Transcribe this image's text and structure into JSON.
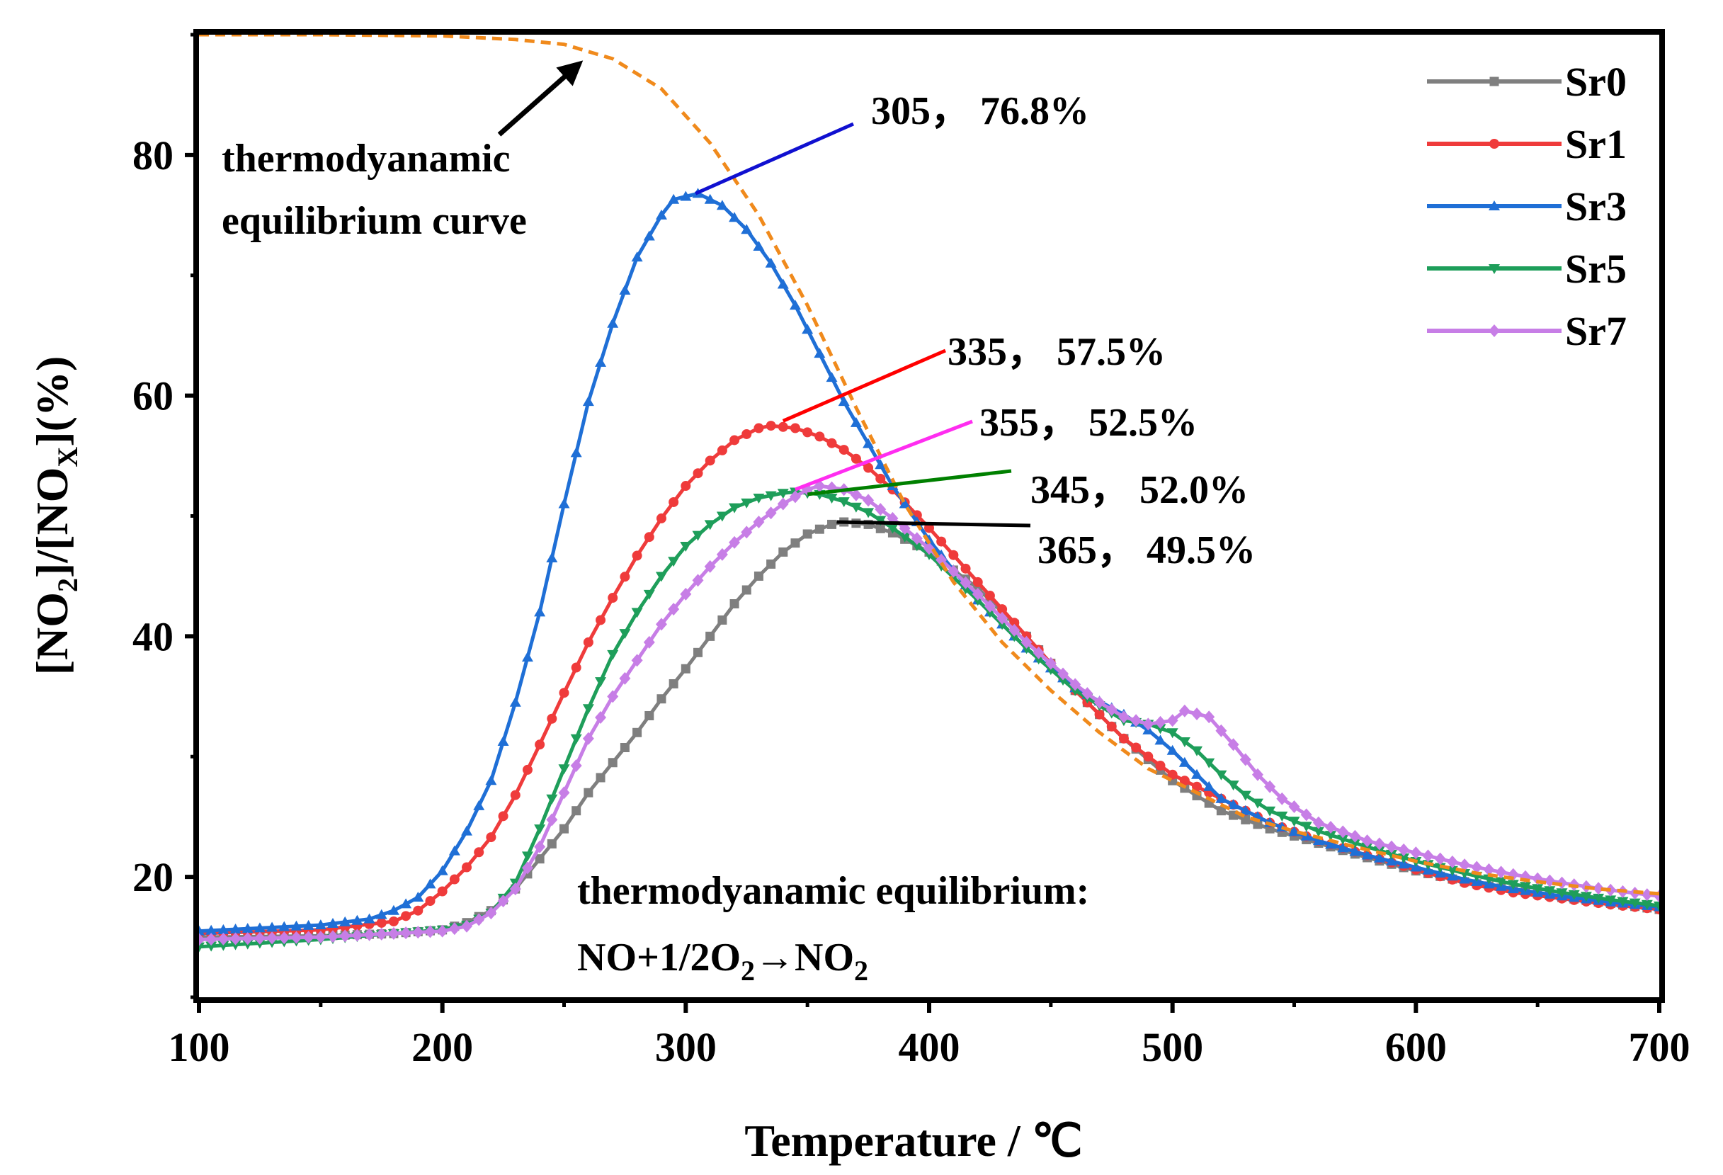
{
  "chart_data": {
    "type": "line",
    "xlabel": "Temperature / ℃",
    "ylabel": {
      "part1": "[NO",
      "sub1": "2",
      "part2": "]/[NO",
      "sub2": "X",
      "part3": "](%)"
    },
    "xlim": [
      100,
      700
    ],
    "ylim": [
      10,
      90
    ],
    "x_ticks": [
      "100",
      "200",
      "300",
      "400",
      "500",
      "600",
      "700"
    ],
    "y_ticks": [
      "20",
      "40",
      "60",
      "80"
    ],
    "legend_position": "top-right",
    "series": [
      {
        "name": "Sr0",
        "color": "#7f7f7f",
        "marker": "square",
        "points": [
          [
            100,
            15.0
          ],
          [
            150,
            15.1
          ],
          [
            180,
            15.3
          ],
          [
            200,
            15.6
          ],
          [
            210,
            16.2
          ],
          [
            220,
            17.2
          ],
          [
            230,
            19.0
          ],
          [
            240,
            21.5
          ],
          [
            250,
            24.0
          ],
          [
            260,
            27.0
          ],
          [
            270,
            29.5
          ],
          [
            280,
            32.0
          ],
          [
            290,
            34.8
          ],
          [
            300,
            37.3
          ],
          [
            310,
            40.0
          ],
          [
            320,
            42.7
          ],
          [
            330,
            45.0
          ],
          [
            340,
            47.0
          ],
          [
            350,
            48.5
          ],
          [
            360,
            49.3
          ],
          [
            365,
            49.5
          ],
          [
            375,
            49.3
          ],
          [
            385,
            48.6
          ],
          [
            400,
            47.0
          ],
          [
            420,
            44.0
          ],
          [
            440,
            40.0
          ],
          [
            460,
            35.5
          ],
          [
            480,
            31.5
          ],
          [
            500,
            28.0
          ],
          [
            520,
            25.5
          ],
          [
            540,
            24.0
          ],
          [
            560,
            22.8
          ],
          [
            580,
            21.6
          ],
          [
            600,
            20.5
          ],
          [
            620,
            19.6
          ],
          [
            640,
            18.9
          ],
          [
            660,
            18.3
          ],
          [
            680,
            17.8
          ],
          [
            700,
            17.3
          ]
        ]
      },
      {
        "name": "Sr1",
        "color": "#ef3b3b",
        "marker": "circle",
        "points": [
          [
            100,
            15.3
          ],
          [
            150,
            15.6
          ],
          [
            180,
            16.3
          ],
          [
            190,
            17.2
          ],
          [
            200,
            18.8
          ],
          [
            210,
            20.8
          ],
          [
            220,
            23.3
          ],
          [
            230,
            26.8
          ],
          [
            240,
            31.0
          ],
          [
            250,
            35.3
          ],
          [
            260,
            39.5
          ],
          [
            270,
            43.2
          ],
          [
            280,
            46.7
          ],
          [
            290,
            49.8
          ],
          [
            300,
            52.5
          ],
          [
            310,
            54.6
          ],
          [
            320,
            56.3
          ],
          [
            330,
            57.3
          ],
          [
            335,
            57.5
          ],
          [
            345,
            57.3
          ],
          [
            355,
            56.6
          ],
          [
            365,
            55.5
          ],
          [
            375,
            54.0
          ],
          [
            385,
            52.2
          ],
          [
            400,
            49.0
          ],
          [
            420,
            44.5
          ],
          [
            440,
            40.0
          ],
          [
            460,
            35.5
          ],
          [
            480,
            31.5
          ],
          [
            500,
            28.5
          ],
          [
            520,
            26.5
          ],
          [
            540,
            24.5
          ],
          [
            560,
            23.0
          ],
          [
            580,
            21.8
          ],
          [
            600,
            20.6
          ],
          [
            620,
            19.5
          ],
          [
            640,
            18.7
          ],
          [
            660,
            18.2
          ],
          [
            680,
            17.7
          ],
          [
            700,
            17.3
          ]
        ]
      },
      {
        "name": "Sr3",
        "color": "#1f6fd6",
        "marker": "triangle-up",
        "points": [
          [
            100,
            15.5
          ],
          [
            150,
            16.0
          ],
          [
            170,
            16.5
          ],
          [
            180,
            17.2
          ],
          [
            190,
            18.3
          ],
          [
            200,
            20.5
          ],
          [
            210,
            23.8
          ],
          [
            220,
            28.0
          ],
          [
            230,
            34.5
          ],
          [
            240,
            42.0
          ],
          [
            250,
            51.0
          ],
          [
            260,
            59.5
          ],
          [
            270,
            66.0
          ],
          [
            280,
            71.5
          ],
          [
            290,
            75.0
          ],
          [
            295,
            76.3
          ],
          [
            305,
            76.8
          ],
          [
            315,
            75.8
          ],
          [
            325,
            73.8
          ],
          [
            335,
            71.0
          ],
          [
            345,
            67.5
          ],
          [
            355,
            63.5
          ],
          [
            365,
            59.5
          ],
          [
            375,
            56.0
          ],
          [
            385,
            52.5
          ],
          [
            400,
            48.0
          ],
          [
            420,
            43.0
          ],
          [
            440,
            39.0
          ],
          [
            460,
            35.7
          ],
          [
            480,
            33.5
          ],
          [
            490,
            32.2
          ],
          [
            500,
            30.5
          ],
          [
            510,
            28.5
          ],
          [
            520,
            26.5
          ],
          [
            540,
            24.5
          ],
          [
            560,
            23.0
          ],
          [
            580,
            21.8
          ],
          [
            600,
            20.8
          ],
          [
            620,
            19.8
          ],
          [
            640,
            19.0
          ],
          [
            660,
            18.4
          ],
          [
            680,
            17.9
          ],
          [
            700,
            17.5
          ]
        ]
      },
      {
        "name": "Sr5",
        "color": "#1e9e5a",
        "marker": "triangle-down",
        "points": [
          [
            100,
            14.2
          ],
          [
            150,
            14.8
          ],
          [
            180,
            15.3
          ],
          [
            200,
            15.6
          ],
          [
            210,
            16.0
          ],
          [
            220,
            17.0
          ],
          [
            230,
            19.5
          ],
          [
            240,
            24.0
          ],
          [
            250,
            29.0
          ],
          [
            260,
            34.0
          ],
          [
            270,
            38.5
          ],
          [
            280,
            42.0
          ],
          [
            290,
            45.0
          ],
          [
            300,
            47.5
          ],
          [
            310,
            49.3
          ],
          [
            320,
            50.7
          ],
          [
            330,
            51.5
          ],
          [
            340,
            51.9
          ],
          [
            345,
            52.0
          ],
          [
            355,
            51.8
          ],
          [
            365,
            51.2
          ],
          [
            375,
            50.3
          ],
          [
            385,
            49.0
          ],
          [
            400,
            46.8
          ],
          [
            420,
            43.0
          ],
          [
            440,
            39.0
          ],
          [
            460,
            35.5
          ],
          [
            480,
            33.0
          ],
          [
            490,
            32.7
          ],
          [
            500,
            32.0
          ],
          [
            510,
            30.5
          ],
          [
            520,
            28.5
          ],
          [
            530,
            26.8
          ],
          [
            540,
            25.5
          ],
          [
            560,
            23.8
          ],
          [
            580,
            22.5
          ],
          [
            600,
            21.3
          ],
          [
            620,
            20.3
          ],
          [
            640,
            19.4
          ],
          [
            660,
            18.7
          ],
          [
            680,
            18.1
          ],
          [
            700,
            17.6
          ]
        ]
      },
      {
        "name": "Sr7",
        "color": "#c77ee6",
        "marker": "diamond",
        "points": [
          [
            100,
            14.8
          ],
          [
            150,
            15.0
          ],
          [
            180,
            15.3
          ],
          [
            200,
            15.5
          ],
          [
            210,
            15.9
          ],
          [
            220,
            17.0
          ],
          [
            230,
            19.0
          ],
          [
            240,
            22.5
          ],
          [
            250,
            27.0
          ],
          [
            260,
            31.5
          ],
          [
            270,
            35.0
          ],
          [
            280,
            38.0
          ],
          [
            290,
            41.0
          ],
          [
            300,
            43.5
          ],
          [
            310,
            45.8
          ],
          [
            320,
            47.8
          ],
          [
            330,
            49.5
          ],
          [
            340,
            51.0
          ],
          [
            350,
            52.2
          ],
          [
            355,
            52.5
          ],
          [
            365,
            52.2
          ],
          [
            375,
            51.3
          ],
          [
            385,
            49.8
          ],
          [
            400,
            47.3
          ],
          [
            420,
            43.5
          ],
          [
            440,
            39.5
          ],
          [
            460,
            36.0
          ],
          [
            470,
            34.5
          ],
          [
            480,
            33.3
          ],
          [
            490,
            32.7
          ],
          [
            500,
            33.0
          ],
          [
            505,
            33.8
          ],
          [
            515,
            33.3
          ],
          [
            525,
            31.0
          ],
          [
            535,
            28.5
          ],
          [
            545,
            26.5
          ],
          [
            560,
            24.5
          ],
          [
            580,
            23.0
          ],
          [
            600,
            22.0
          ],
          [
            620,
            21.0
          ],
          [
            640,
            20.2
          ],
          [
            660,
            19.5
          ],
          [
            680,
            18.9
          ],
          [
            700,
            18.4
          ]
        ]
      },
      {
        "name": "equilibrium",
        "color": "#f08a1c",
        "marker": "none",
        "dashed": true,
        "points": [
          [
            100,
            90
          ],
          [
            150,
            90
          ],
          [
            200,
            89.9
          ],
          [
            230,
            89.6
          ],
          [
            250,
            89.2
          ],
          [
            270,
            88.0
          ],
          [
            290,
            85.5
          ],
          [
            310,
            81.0
          ],
          [
            330,
            75.0
          ],
          [
            350,
            67.5
          ],
          [
            370,
            59.0
          ],
          [
            390,
            51.0
          ],
          [
            410,
            44.5
          ],
          [
            430,
            39.5
          ],
          [
            450,
            35.5
          ],
          [
            470,
            32.0
          ],
          [
            490,
            29.0
          ],
          [
            510,
            27.0
          ],
          [
            530,
            25.0
          ],
          [
            550,
            23.8
          ],
          [
            575,
            22.5
          ],
          [
            600,
            21.3
          ],
          [
            625,
            20.3
          ],
          [
            650,
            19.6
          ],
          [
            675,
            19.0
          ],
          [
            700,
            18.6
          ]
        ]
      }
    ],
    "annotations": [
      {
        "text": "305， 76.8%",
        "point": [
          304,
          76.8
        ],
        "color": "#1010d0"
      },
      {
        "text": "335， 57.5%",
        "point": [
          340,
          57.9
        ],
        "color": "#ff0000"
      },
      {
        "text": "355， 52.5%",
        "point": [
          345,
          52.2
        ],
        "color": "#ff2df0"
      },
      {
        "text": "345， 52.0%",
        "point": [
          350,
          51.8
        ],
        "color": "#008000"
      },
      {
        "text": "365， 49.5%",
        "point": [
          362,
          49.5
        ],
        "color": "#000000"
      }
    ],
    "eq_label": {
      "line1": "thermodyanamic",
      "line2": "equilibrium curve"
    },
    "reaction_label": {
      "line1": "thermodyanamic equilibrium:",
      "p1": "NO+1/2O",
      "s1": "2",
      "p2": "→NO",
      "s2": "2"
    }
  }
}
